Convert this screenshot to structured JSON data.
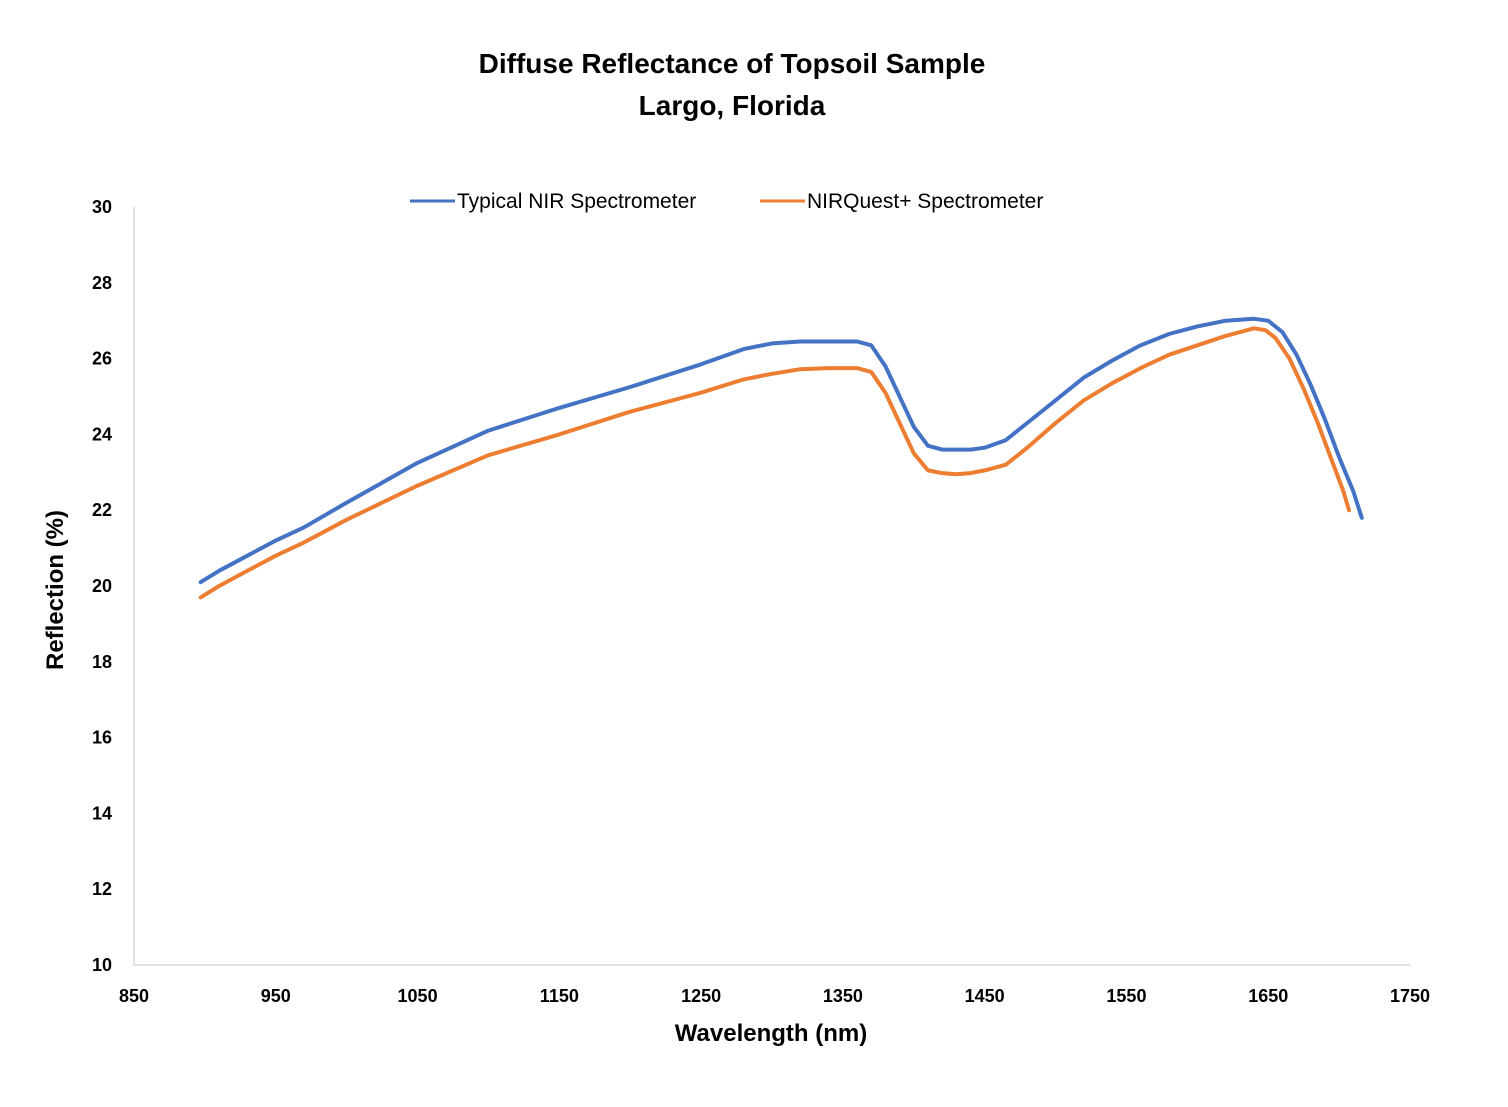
{
  "chart_data": {
    "type": "line",
    "title": "Diffuse Reflectance of Topsoil Sample",
    "subtitle": "Largo, Florida",
    "xlabel": "Wavelength (nm)",
    "ylabel": "Reflection (%)",
    "xlim": [
      850,
      1750
    ],
    "ylim": [
      10,
      30
    ],
    "x_ticks": [
      "850",
      "950",
      "1050",
      "1150",
      "1250",
      "1350",
      "1450",
      "1550",
      "1650",
      "1750"
    ],
    "y_ticks": [
      "10",
      "12",
      "14",
      "16",
      "18",
      "20",
      "22",
      "24",
      "26",
      "28",
      "30"
    ],
    "grid": false,
    "legend_position": "top",
    "series": [
      {
        "name": "Typical NIR Spectrometer",
        "color": "#4472C4",
        "points": [
          [
            897,
            20.1
          ],
          [
            910,
            20.4
          ],
          [
            930,
            20.8
          ],
          [
            950,
            21.2
          ],
          [
            970,
            21.55
          ],
          [
            1000,
            22.2
          ],
          [
            1050,
            23.25
          ],
          [
            1100,
            24.1
          ],
          [
            1150,
            24.7
          ],
          [
            1200,
            25.25
          ],
          [
            1250,
            25.85
          ],
          [
            1280,
            26.25
          ],
          [
            1300,
            26.4
          ],
          [
            1320,
            26.45
          ],
          [
            1340,
            26.45
          ],
          [
            1360,
            26.45
          ],
          [
            1370,
            26.35
          ],
          [
            1380,
            25.8
          ],
          [
            1390,
            25.0
          ],
          [
            1400,
            24.2
          ],
          [
            1410,
            23.7
          ],
          [
            1420,
            23.6
          ],
          [
            1430,
            23.6
          ],
          [
            1440,
            23.6
          ],
          [
            1450,
            23.65
          ],
          [
            1465,
            23.85
          ],
          [
            1480,
            24.3
          ],
          [
            1500,
            24.9
          ],
          [
            1520,
            25.5
          ],
          [
            1540,
            25.95
          ],
          [
            1560,
            26.35
          ],
          [
            1580,
            26.65
          ],
          [
            1600,
            26.85
          ],
          [
            1620,
            27.0
          ],
          [
            1640,
            27.05
          ],
          [
            1650,
            27.0
          ],
          [
            1660,
            26.7
          ],
          [
            1670,
            26.1
          ],
          [
            1680,
            25.3
          ],
          [
            1690,
            24.4
          ],
          [
            1700,
            23.4
          ],
          [
            1710,
            22.5
          ],
          [
            1716,
            21.8
          ]
        ]
      },
      {
        "name": "NIRQuest+ Spectrometer",
        "color": "#ED7D31",
        "points": [
          [
            897,
            19.7
          ],
          [
            910,
            20.0
          ],
          [
            930,
            20.4
          ],
          [
            950,
            20.8
          ],
          [
            970,
            21.15
          ],
          [
            1000,
            21.75
          ],
          [
            1050,
            22.65
          ],
          [
            1100,
            23.45
          ],
          [
            1150,
            24.0
          ],
          [
            1200,
            24.6
          ],
          [
            1250,
            25.1
          ],
          [
            1280,
            25.45
          ],
          [
            1300,
            25.6
          ],
          [
            1320,
            25.72
          ],
          [
            1340,
            25.75
          ],
          [
            1360,
            25.75
          ],
          [
            1370,
            25.65
          ],
          [
            1380,
            25.1
          ],
          [
            1390,
            24.3
          ],
          [
            1400,
            23.5
          ],
          [
            1410,
            23.05
          ],
          [
            1420,
            22.98
          ],
          [
            1430,
            22.95
          ],
          [
            1440,
            22.98
          ],
          [
            1450,
            23.05
          ],
          [
            1465,
            23.2
          ],
          [
            1480,
            23.65
          ],
          [
            1500,
            24.3
          ],
          [
            1520,
            24.9
          ],
          [
            1540,
            25.35
          ],
          [
            1560,
            25.75
          ],
          [
            1580,
            26.1
          ],
          [
            1600,
            26.35
          ],
          [
            1620,
            26.6
          ],
          [
            1640,
            26.8
          ],
          [
            1648,
            26.75
          ],
          [
            1655,
            26.55
          ],
          [
            1665,
            26.0
          ],
          [
            1675,
            25.2
          ],
          [
            1685,
            24.3
          ],
          [
            1695,
            23.3
          ],
          [
            1703,
            22.5
          ],
          [
            1707,
            22.0
          ]
        ]
      }
    ]
  }
}
